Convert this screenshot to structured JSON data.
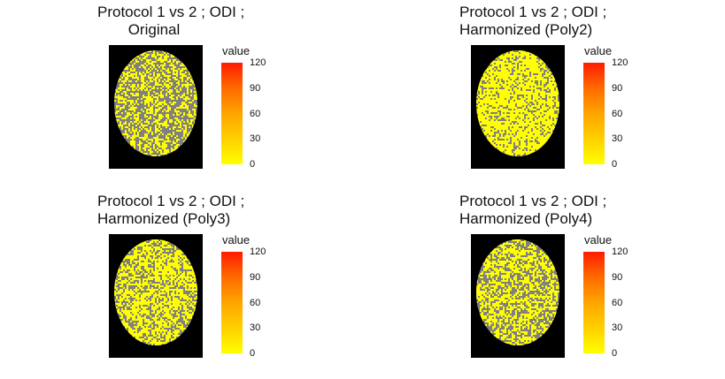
{
  "chart_data": [
    {
      "type": "heatmap",
      "title_lines": [
        "Protocol 1 vs 2 ; ODI ;",
        "Original"
      ],
      "legend_title": "value",
      "scale_range": [
        0,
        120
      ],
      "ticks": [
        "0",
        "30",
        "60",
        "90",
        "120"
      ],
      "yellow_fraction": 0.45,
      "colors": {
        "background": "#000000",
        "brain": "#808080",
        "voxel": "#ffff00"
      }
    },
    {
      "type": "heatmap",
      "title_lines": [
        "Protocol 1 vs 2 ; ODI ;",
        "Harmonized (Poly2)"
      ],
      "legend_title": "value",
      "scale_range": [
        0,
        120
      ],
      "ticks": [
        "0",
        "30",
        "60",
        "90",
        "120"
      ],
      "yellow_fraction": 0.75,
      "colors": {
        "background": "#000000",
        "brain": "#808080",
        "voxel": "#ffff00"
      }
    },
    {
      "type": "heatmap",
      "title_lines": [
        "Protocol 1 vs 2 ; ODI ;",
        "Harmonized (Poly3)"
      ],
      "legend_title": "value",
      "scale_range": [
        0,
        120
      ],
      "ticks": [
        "0",
        "30",
        "60",
        "90",
        "120"
      ],
      "yellow_fraction": 0.62,
      "colors": {
        "background": "#000000",
        "brain": "#808080",
        "voxel": "#ffff00"
      }
    },
    {
      "type": "heatmap",
      "title_lines": [
        "Protocol 1 vs 2 ; ODI ;",
        "Harmonized (Poly4)"
      ],
      "legend_title": "value",
      "scale_range": [
        0,
        120
      ],
      "ticks": [
        "0",
        "30",
        "60",
        "90",
        "120"
      ],
      "yellow_fraction": 0.55,
      "colors": {
        "background": "#000000",
        "brain": "#808080",
        "voxel": "#ffff00"
      }
    }
  ]
}
